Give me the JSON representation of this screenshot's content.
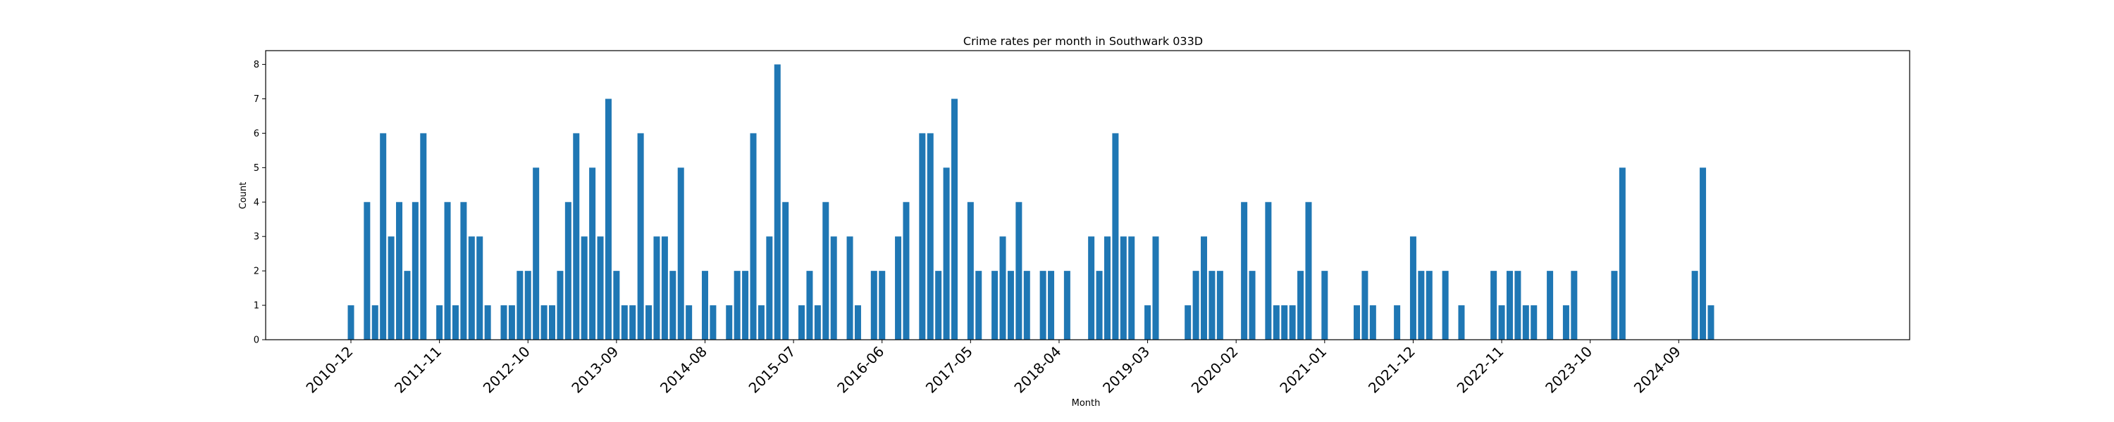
{
  "chart_data": {
    "type": "bar",
    "title": "Crime rates per month in Southwark 033D",
    "xlabel": "Month",
    "ylabel": "Count",
    "ylim": [
      0,
      8.4
    ],
    "yticks": [
      0,
      1,
      2,
      3,
      4,
      5,
      6,
      7,
      8
    ],
    "xtick_labels": [
      "2010-12",
      "2011-11",
      "2012-10",
      "2013-09",
      "2014-08",
      "2015-07",
      "2016-06",
      "2017-05",
      "2018-04",
      "2019-03",
      "2020-02",
      "2021-01",
      "2021-12",
      "2022-11",
      "2023-10",
      "2024-09"
    ],
    "bar_color": "#1f77b4",
    "grid": false,
    "categories": [
      "2010-12",
      "2011-01",
      "2011-02",
      "2011-03",
      "2011-04",
      "2011-05",
      "2011-06",
      "2011-07",
      "2011-08",
      "2011-09",
      "2011-10",
      "2011-11",
      "2011-12",
      "2012-01",
      "2012-02",
      "2012-03",
      "2012-04",
      "2012-05",
      "2012-06",
      "2012-07",
      "2012-08",
      "2012-09",
      "2012-10",
      "2012-11",
      "2012-12",
      "2013-01",
      "2013-02",
      "2013-03",
      "2013-04",
      "2013-05",
      "2013-06",
      "2013-07",
      "2013-08",
      "2013-09",
      "2013-10",
      "2013-11",
      "2013-12",
      "2014-01",
      "2014-02",
      "2014-03",
      "2014-04",
      "2014-05",
      "2014-06",
      "2014-07",
      "2014-08",
      "2014-09",
      "2014-10",
      "2014-11",
      "2014-12",
      "2015-01",
      "2015-02",
      "2015-03",
      "2015-04",
      "2015-05",
      "2015-06",
      "2015-07",
      "2015-08",
      "2015-09",
      "2015-10",
      "2015-11",
      "2015-12",
      "2016-01",
      "2016-02",
      "2016-03",
      "2016-04",
      "2016-05",
      "2016-06",
      "2016-07",
      "2016-08",
      "2016-09",
      "2016-10",
      "2016-11",
      "2016-12",
      "2017-01",
      "2017-02",
      "2017-03",
      "2017-04",
      "2017-05",
      "2017-06",
      "2017-07",
      "2017-08",
      "2017-09",
      "2017-10",
      "2017-11",
      "2017-12",
      "2018-01",
      "2018-02",
      "2018-03",
      "2018-04",
      "2018-05",
      "2018-06",
      "2018-07",
      "2018-08",
      "2018-09",
      "2018-10",
      "2018-11",
      "2018-12",
      "2019-01",
      "2019-02",
      "2019-03",
      "2019-04",
      "2019-05",
      "2019-06",
      "2019-07",
      "2019-08",
      "2019-09",
      "2019-10",
      "2019-11",
      "2019-12",
      "2020-01",
      "2020-02",
      "2020-03",
      "2020-04",
      "2020-05",
      "2020-06",
      "2020-07",
      "2020-08",
      "2020-09",
      "2020-10",
      "2020-11",
      "2020-12",
      "2021-01",
      "2021-02",
      "2021-03",
      "2021-04",
      "2021-05",
      "2021-06",
      "2021-07",
      "2021-08",
      "2021-09",
      "2021-10",
      "2021-11",
      "2021-12",
      "2022-01",
      "2022-02",
      "2022-03",
      "2022-04",
      "2022-05",
      "2022-06",
      "2022-07",
      "2022-08",
      "2022-09",
      "2022-10",
      "2022-11",
      "2022-12",
      "2023-01",
      "2023-02",
      "2023-03",
      "2023-04",
      "2023-05",
      "2023-06",
      "2023-07",
      "2023-08",
      "2023-09",
      "2023-10",
      "2023-11",
      "2023-12",
      "2024-01",
      "2024-02",
      "2024-03",
      "2024-04",
      "2024-05",
      "2024-06",
      "2024-07",
      "2024-08",
      "2024-09",
      "2024-10",
      "2024-11",
      "2024-12",
      "2025-01"
    ],
    "values": [
      1,
      0,
      4,
      1,
      6,
      3,
      4,
      2,
      4,
      6,
      0,
      1,
      4,
      1,
      4,
      3,
      3,
      1,
      0,
      1,
      1,
      2,
      2,
      5,
      1,
      1,
      2,
      4,
      6,
      3,
      5,
      3,
      7,
      2,
      1,
      1,
      6,
      1,
      3,
      3,
      2,
      5,
      1,
      0,
      2,
      1,
      0,
      1,
      2,
      2,
      6,
      1,
      3,
      8,
      4,
      0,
      1,
      2,
      1,
      4,
      3,
      0,
      3,
      1,
      0,
      2,
      2,
      0,
      3,
      4,
      0,
      6,
      6,
      2,
      5,
      7,
      0,
      4,
      2,
      0,
      2,
      3,
      2,
      4,
      2,
      0,
      2,
      2,
      0,
      2,
      0,
      0,
      3,
      2,
      3,
      6,
      3,
      3,
      0,
      1,
      3,
      0,
      0,
      0,
      1,
      2,
      3,
      2,
      2,
      0,
      0,
      4,
      2,
      0,
      4,
      1,
      1,
      1,
      2,
      4,
      0,
      2,
      0,
      0,
      0,
      1,
      2,
      1,
      0,
      0,
      1,
      0,
      3,
      2,
      2,
      0,
      2,
      0,
      1,
      0,
      0,
      0,
      2,
      1,
      2,
      2,
      1,
      1,
      0,
      2,
      0,
      1,
      2,
      0,
      0,
      0,
      0,
      2,
      5,
      0,
      0,
      0,
      0,
      0,
      0,
      0,
      0,
      2,
      5,
      1
    ]
  }
}
